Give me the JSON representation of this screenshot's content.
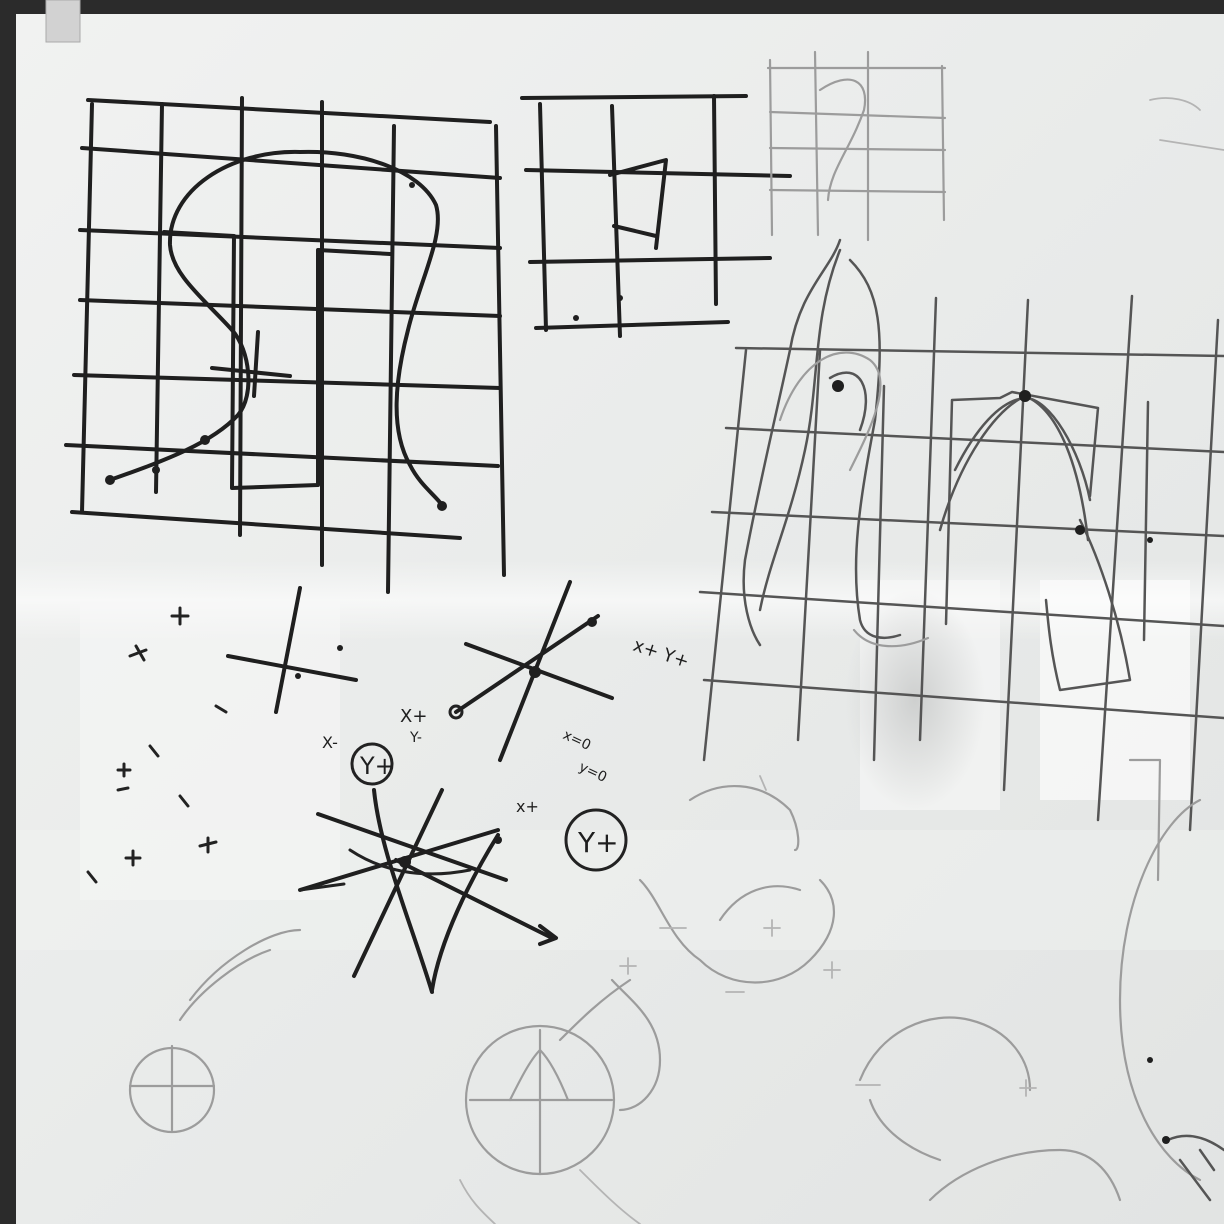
{
  "scene": {
    "subject": "whiteboard-with-hand-drawn-sketches",
    "colors": {
      "frame": "#2b2b2b",
      "board": "#eef0ef",
      "ink": "#1f1f1f",
      "ghost_ink": "#9c9c9c",
      "glare": "#ffffff"
    }
  },
  "annotations": {
    "circled_label_1": "Y+",
    "circled_label_2": "Y+",
    "mark_x_plus": "X+",
    "mark_x_plus_y_plus": "x+ Y+",
    "mark_x_minus": "X-",
    "mark_x_plus_2": "x+",
    "mark_y_minus": "Y-",
    "mark_x_eq": "x=0",
    "mark_y_eq": "y=0"
  }
}
